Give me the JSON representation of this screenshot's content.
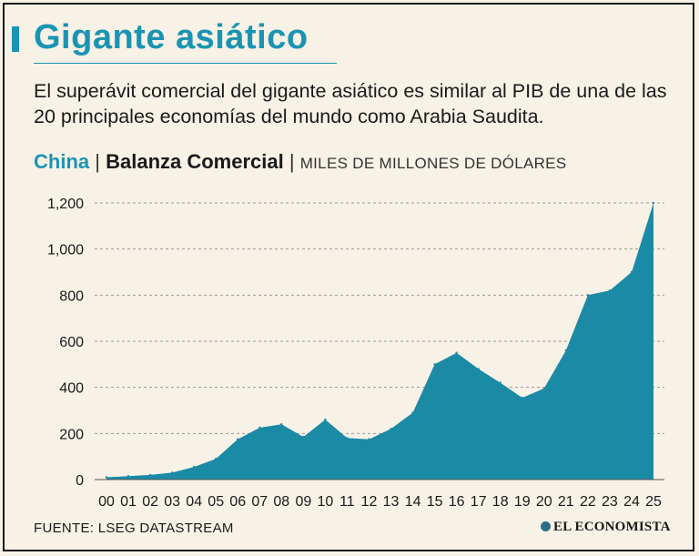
{
  "header": {
    "title": "Gigante asiático",
    "subtitle": "El superávit comercial del gigante asiático es similar al PIB de una de las 20 principales economías del mundo como Arabia Saudita."
  },
  "chart_heading": {
    "country": "China",
    "separator": "|",
    "series": "Balanza Comercial",
    "units": "MILES DE MILLONES DE DÓLARES"
  },
  "footer": {
    "source": "FUENTE: LSEG DATASTREAM",
    "logo": "EL ECONOMISTA"
  },
  "colors": {
    "accent": "#1a94b3",
    "area": "#1a8aa5",
    "background": "#f7f1e6",
    "grid": "#9a9a9a"
  },
  "chart_data": {
    "type": "area",
    "title": "Balanza Comercial",
    "ylabel": "MILES DE MILLONES DE DÓLARES",
    "xlabel": "",
    "ylim": [
      0,
      1200
    ],
    "yticks": [
      0,
      200,
      400,
      600,
      800,
      1000,
      1200
    ],
    "ytick_labels": [
      "0",
      "200",
      "400",
      "600",
      "800",
      "1,000",
      "1,200"
    ],
    "grid": true,
    "categories": [
      "00",
      "01",
      "02",
      "03",
      "04",
      "05",
      "06",
      "07",
      "08",
      "09",
      "10",
      "11",
      "12",
      "13",
      "14",
      "15",
      "16",
      "17",
      "18",
      "19",
      "20",
      "21",
      "22",
      "23",
      "24",
      "25"
    ],
    "series": [
      {
        "name": "China",
        "values": [
          10,
          15,
          20,
          30,
          55,
          90,
          175,
          225,
          240,
          185,
          260,
          180,
          175,
          220,
          290,
          500,
          550,
          480,
          420,
          355,
          395,
          560,
          800,
          820,
          900,
          1200
        ]
      }
    ]
  }
}
